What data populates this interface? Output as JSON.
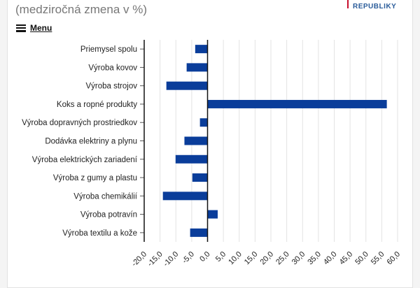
{
  "header": {
    "subtitle": "(medziročná zmena v %)",
    "logo_text": "REPUBLIKY",
    "menu_label": "Menu"
  },
  "chart_data": {
    "type": "bar",
    "orientation": "horizontal",
    "categories": [
      "Priemysel spolu",
      "Výroba kovov",
      "Výroba strojov",
      "Koks a ropné produkty",
      "Výroba dopravných prostriedkov",
      "Dodávka elektriny a plynu",
      "Výroba elektrických zariadení",
      "Výroba z gumy a plastu",
      "Výroba chemikálií",
      "Výroba potravín",
      "Výroba textilu a kože"
    ],
    "values": [
      -3.9,
      -6.6,
      -13.0,
      56.6,
      -2.4,
      -7.3,
      -10.1,
      -4.8,
      -14.1,
      3.2,
      -5.5
    ],
    "xlim": [
      -20,
      60
    ],
    "ticks": [
      "-20,0",
      "-15,0",
      "-10,0",
      "-5,0",
      "0,0",
      "5,0",
      "10,0",
      "15,0",
      "20,0",
      "25,0",
      "30,0",
      "35,0",
      "40,0",
      "45,0",
      "50,0",
      "55,0",
      "60,0"
    ],
    "grid": true,
    "bar_color": "#0a3d9a"
  }
}
